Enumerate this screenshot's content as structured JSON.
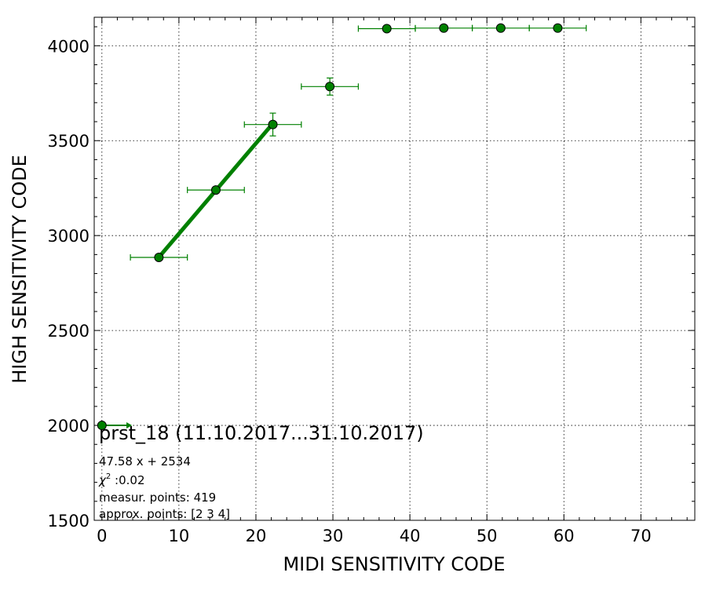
{
  "chart_data": {
    "type": "scatter",
    "xlabel": "MIDI SENSITIVITY CODE",
    "ylabel": "HIGH SENSITIVITY CODE",
    "xlim": [
      -1,
      77
    ],
    "ylim": [
      1500,
      4150
    ],
    "xticks": [
      "0",
      "10",
      "20",
      "30",
      "40",
      "50",
      "60",
      "70"
    ],
    "yticks": [
      "1500",
      "2000",
      "2500",
      "3000",
      "3500",
      "4000"
    ],
    "grid": true,
    "color": "#008000",
    "points": [
      {
        "x": 7.4,
        "y": 2885,
        "xerr": 3.7,
        "yerr": 10
      },
      {
        "x": 14.8,
        "y": 3240,
        "xerr": 3.7,
        "yerr": 15
      },
      {
        "x": 22.2,
        "y": 3585,
        "xerr": 3.7,
        "yerr": 60
      },
      {
        "x": 29.6,
        "y": 3785,
        "xerr": 3.7,
        "yerr": 45
      },
      {
        "x": 37.0,
        "y": 4090,
        "xerr": 3.7,
        "yerr": 3
      },
      {
        "x": 44.4,
        "y": 4093,
        "xerr": 3.7,
        "yerr": 3
      },
      {
        "x": 51.8,
        "y": 4093,
        "xerr": 3.7,
        "yerr": 3
      },
      {
        "x": 59.2,
        "y": 4093,
        "xerr": 3.7,
        "yerr": 3
      }
    ],
    "fit_line": {
      "x": [
        7.4,
        22.2
      ],
      "slope": 47.58,
      "intercept": 2534
    },
    "origin_marker": {
      "x": 0,
      "y": 2000,
      "arrow_to_x": 3.9
    },
    "annotation": {
      "title": "prst_18 (11.10.2017...31.10.2017)",
      "fit": "47.58 x + 2534",
      "chi_symbol": "χ",
      "chi_power": "2",
      "chi_value": " :0.02",
      "measur": "measur. points: 419",
      "approx": "approx. points: [2 3 4]"
    }
  }
}
